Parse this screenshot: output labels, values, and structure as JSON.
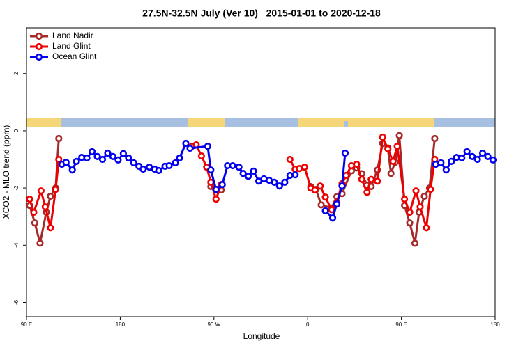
{
  "chart_data": {
    "type": "line",
    "title": "27.5N-32.5N July (Ver 10)   2015-01-01 to 2020-12-18",
    "x_label": "Longitude",
    "y_label": "XCO2 - MLO trend (ppm)",
    "xlim": [
      90,
      540
    ],
    "ylim": [
      -6.5,
      3.6
    ],
    "xticks": [
      {
        "value": 90,
        "label": "90 E"
      },
      {
        "value": 180,
        "label": "180"
      },
      {
        "value": 270,
        "label": "90 W"
      },
      {
        "value": 360,
        "label": "0"
      },
      {
        "value": 450,
        "label": "90 E"
      },
      {
        "value": 540,
        "label": "180"
      }
    ],
    "yticks": [
      -6,
      -4,
      -2,
      0,
      2
    ],
    "legend": "top-left",
    "series": [
      {
        "name": "Land Nadir",
        "color": "#a52a2a",
        "x": [
          93,
          98,
          103,
          109,
          113,
          118,
          121,
          200,
          267,
          272,
          277,
          320,
          363,
          368,
          373,
          383,
          388,
          393,
          402,
          407,
          412,
          417,
          421,
          427,
          432,
          437,
          440,
          444,
          448,
          453,
          458,
          463,
          467,
          472,
          477,
          482
        ],
        "values": [
          -2.61,
          -3.22,
          -3.93,
          -2.85,
          -2.29,
          -2.0,
          -0.27,
          null,
          -1.95,
          -2.05,
          -2.07,
          null,
          -1.95,
          -2.05,
          -2.59,
          -2.7,
          -2.3,
          -2.2,
          -1.4,
          -1.3,
          -1.5,
          -1.9,
          -1.95,
          -1.37,
          -0.44,
          -0.6,
          -1.49,
          -1.1,
          -0.17,
          -2.61,
          -3.22,
          -3.93,
          -2.85,
          -2.29,
          -2.0,
          -0.27
        ]
      },
      {
        "name": "Land Glint",
        "color": "#ee0000",
        "x": [
          93,
          97,
          104,
          108,
          113,
          118,
          121,
          185,
          249,
          253,
          258,
          263,
          267,
          272,
          277,
          310,
          343,
          348,
          352,
          357,
          363,
          367,
          372,
          377,
          383,
          388,
          393,
          397,
          402,
          407,
          412,
          417,
          421,
          427,
          432,
          437,
          442,
          446,
          453,
          458,
          464,
          468,
          474,
          478,
          482
        ],
        "values": [
          -2.39,
          -2.85,
          -2.1,
          -2.66,
          -3.39,
          -2.05,
          -1.0,
          null,
          -0.54,
          -0.49,
          -0.88,
          -1.27,
          -1.8,
          -2.39,
          -1.88,
          null,
          -1.0,
          -1.34,
          -1.32,
          -1.27,
          -2.0,
          -2.07,
          -1.93,
          -2.32,
          -2.76,
          -2.5,
          -1.85,
          -1.56,
          -1.22,
          -1.17,
          -1.7,
          -2.15,
          -1.7,
          -1.76,
          -0.22,
          -0.63,
          -1.07,
          -0.54,
          -2.39,
          -2.85,
          -2.1,
          -2.66,
          -3.39,
          -2.05,
          -1.0
        ]
      },
      {
        "name": "Ocean Glint",
        "color": "#0000ee",
        "x": [
          124,
          128,
          134,
          138,
          143,
          148,
          153,
          158,
          163,
          168,
          173,
          178,
          183,
          188,
          193,
          198,
          202,
          208,
          213,
          217,
          223,
          227,
          233,
          237,
          243,
          247,
          264,
          267,
          272,
          278,
          283,
          288,
          294,
          298,
          303,
          308,
          313,
          318,
          323,
          328,
          333,
          338,
          343,
          348,
          360,
          377,
          384,
          388,
          393,
          396,
          460,
          483,
          488,
          493,
          498,
          503,
          508,
          513,
          518,
          523,
          528,
          533,
          538
        ],
        "values": [
          -1.17,
          -1.1,
          -1.37,
          -1.07,
          -0.93,
          -0.95,
          -0.73,
          -0.9,
          -1.0,
          -0.78,
          -0.9,
          -1.02,
          -0.8,
          -0.95,
          -1.12,
          -1.24,
          -1.34,
          -1.27,
          -1.34,
          -1.39,
          -1.24,
          -1.22,
          -1.12,
          -0.95,
          -0.44,
          -0.61,
          -0.54,
          -1.37,
          -2.05,
          -1.88,
          -1.22,
          -1.22,
          -1.27,
          -1.49,
          -1.59,
          -1.41,
          -1.76,
          -1.68,
          -1.73,
          -1.8,
          -1.93,
          -1.8,
          -1.56,
          -1.54,
          null,
          -2.8,
          -3.05,
          -2.56,
          -1.93,
          -0.78,
          null,
          -1.17,
          -1.12,
          -1.37,
          -1.07,
          -0.93,
          -0.95,
          -0.73,
          -0.9,
          -1.0,
          -0.78,
          -0.9,
          -1.02
        ]
      }
    ]
  }
}
